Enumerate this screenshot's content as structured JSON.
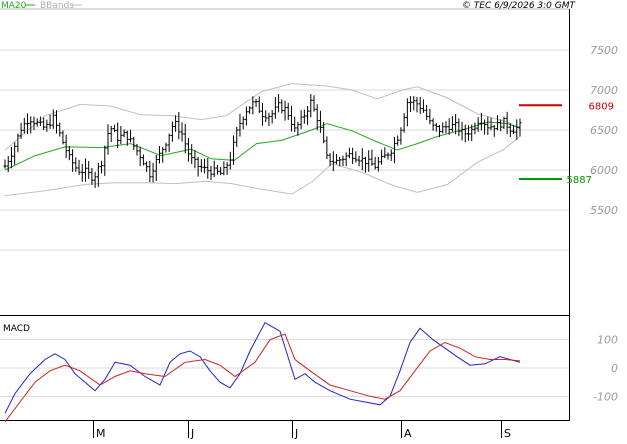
{
  "header": {
    "ma_label": "MA20",
    "bb_label": "BBands",
    "copyright": "© TEC 6/9/2026 3:0 GMT"
  },
  "colors": {
    "ma20": "#22aa22",
    "bbands": "#c0c0c0",
    "price_bars": "#000000",
    "grid": "#d8d8d8",
    "axis_text": "#9a9a9a",
    "resistance": "#cc0000",
    "support": "#009900",
    "macd_line": "#2222cc",
    "signal_line": "#cc2222"
  },
  "chart_data": [
    {
      "type": "ohlc",
      "title": "",
      "indicators": [
        "MA20",
        "BBands"
      ],
      "ylim": [
        4200,
        8000
      ],
      "y_ticks": [
        "5500",
        "6000",
        "6500",
        "7000",
        "7500"
      ],
      "x_tick_labels": [
        "M",
        "J",
        "J",
        "A",
        "S"
      ],
      "levels": [
        {
          "name": "resistance",
          "label": "6809",
          "value": 6809
        },
        {
          "name": "support",
          "label": "5887",
          "value": 5887
        }
      ],
      "price_path": [
        [
          0,
          6050
        ],
        [
          8,
          6250
        ],
        [
          16,
          6520
        ],
        [
          24,
          6650
        ],
        [
          32,
          6580
        ],
        [
          40,
          6520
        ],
        [
          48,
          6650
        ],
        [
          56,
          6400
        ],
        [
          64,
          6150
        ],
        [
          72,
          6000
        ],
        [
          80,
          5980
        ],
        [
          88,
          5900
        ],
        [
          96,
          6100
        ],
        [
          104,
          6550
        ],
        [
          112,
          6400
        ],
        [
          120,
          6450
        ],
        [
          128,
          6300
        ],
        [
          136,
          6150
        ],
        [
          144,
          5950
        ],
        [
          152,
          6150
        ],
        [
          160,
          6350
        ],
        [
          168,
          6600
        ],
        [
          176,
          6450
        ],
        [
          184,
          6150
        ],
        [
          192,
          6050
        ],
        [
          200,
          6000
        ],
        [
          208,
          5980
        ],
        [
          216,
          5950
        ],
        [
          224,
          6150
        ],
        [
          232,
          6550
        ],
        [
          240,
          6750
        ],
        [
          248,
          6850
        ],
        [
          256,
          6700
        ],
        [
          264,
          6680
        ],
        [
          272,
          6800
        ],
        [
          280,
          6750
        ],
        [
          288,
          6500
        ],
        [
          296,
          6650
        ],
        [
          304,
          6850
        ],
        [
          312,
          6600
        ],
        [
          320,
          6150
        ],
        [
          328,
          6100
        ],
        [
          336,
          6150
        ],
        [
          344,
          6200
        ],
        [
          352,
          6150
        ],
        [
          360,
          6100
        ],
        [
          368,
          6050
        ],
        [
          376,
          6150
        ],
        [
          384,
          6250
        ],
        [
          392,
          6450
        ],
        [
          400,
          6850
        ],
        [
          408,
          6850
        ],
        [
          416,
          6750
        ],
        [
          424,
          6550
        ],
        [
          432,
          6500
        ],
        [
          440,
          6550
        ],
        [
          448,
          6550
        ],
        [
          456,
          6450
        ],
        [
          464,
          6500
        ],
        [
          472,
          6650
        ],
        [
          480,
          6550
        ],
        [
          488,
          6550
        ],
        [
          496,
          6600
        ],
        [
          504,
          6500
        ],
        [
          512,
          6550
        ]
      ],
      "ma20_path": [
        [
          0,
          6000
        ],
        [
          30,
          6180
        ],
        [
          60,
          6290
        ],
        [
          95,
          6280
        ],
        [
          125,
          6330
        ],
        [
          155,
          6180
        ],
        [
          185,
          6260
        ],
        [
          205,
          6140
        ],
        [
          228,
          6120
        ],
        [
          250,
          6330
        ],
        [
          275,
          6370
        ],
        [
          305,
          6500
        ],
        [
          320,
          6580
        ],
        [
          345,
          6490
        ],
        [
          370,
          6350
        ],
        [
          390,
          6250
        ],
        [
          410,
          6330
        ],
        [
          430,
          6420
        ],
        [
          460,
          6520
        ],
        [
          480,
          6600
        ],
        [
          500,
          6580
        ],
        [
          512,
          6520
        ]
      ],
      "bb_upper_path": [
        [
          0,
          6250
        ],
        [
          40,
          6680
        ],
        [
          75,
          6820
        ],
        [
          105,
          6800
        ],
        [
          135,
          6690
        ],
        [
          165,
          6680
        ],
        [
          195,
          6630
        ],
        [
          220,
          6680
        ],
        [
          255,
          6980
        ],
        [
          285,
          7080
        ],
        [
          320,
          7050
        ],
        [
          345,
          7000
        ],
        [
          370,
          6890
        ],
        [
          395,
          7000
        ],
        [
          410,
          7040
        ],
        [
          440,
          6900
        ],
        [
          470,
          6700
        ],
        [
          500,
          6600
        ],
        [
          512,
          6520
        ]
      ],
      "bb_lower_path": [
        [
          0,
          5680
        ],
        [
          40,
          5740
        ],
        [
          80,
          5820
        ],
        [
          110,
          5840
        ],
        [
          140,
          5840
        ],
        [
          170,
          5830
        ],
        [
          200,
          5860
        ],
        [
          225,
          5830
        ],
        [
          255,
          5760
        ],
        [
          285,
          5700
        ],
        [
          305,
          5850
        ],
        [
          325,
          6080
        ],
        [
          355,
          5970
        ],
        [
          385,
          5810
        ],
        [
          410,
          5720
        ],
        [
          440,
          5820
        ],
        [
          470,
          6100
        ],
        [
          495,
          6250
        ],
        [
          512,
          6420
        ]
      ]
    },
    {
      "type": "line",
      "title": "MACD",
      "ylim": [
        -180,
        180
      ],
      "y_ticks": [
        "100",
        "0",
        "-100"
      ],
      "series": [
        {
          "values": [
            [
              0,
              -160
            ],
            [
              10,
              -90
            ],
            [
              25,
              -20
            ],
            [
              40,
              30
            ],
            [
              50,
              50
            ],
            [
              60,
              30
            ],
            [
              70,
              -20
            ],
            [
              80,
              -50
            ],
            [
              90,
              -80
            ],
            [
              100,
              -40
            ],
            [
              110,
              20
            ],
            [
              125,
              10
            ],
            [
              140,
              -30
            ],
            [
              155,
              -60
            ],
            [
              165,
              20
            ],
            [
              175,
              50
            ],
            [
              185,
              60
            ],
            [
              195,
              40
            ],
            [
              205,
              -10
            ],
            [
              215,
              -50
            ],
            [
              225,
              -70
            ],
            [
              235,
              -20
            ],
            [
              245,
              60
            ],
            [
              260,
              160
            ],
            [
              275,
              130
            ],
            [
              290,
              -40
            ],
            [
              300,
              -20
            ],
            [
              310,
              -50
            ],
            [
              325,
              -80
            ],
            [
              345,
              -110
            ],
            [
              360,
              -120
            ],
            [
              375,
              -130
            ],
            [
              385,
              -100
            ],
            [
              395,
              -10
            ],
            [
              405,
              90
            ],
            [
              415,
              140
            ],
            [
              428,
              100
            ],
            [
              440,
              70
            ],
            [
              452,
              40
            ],
            [
              465,
              10
            ],
            [
              480,
              15
            ],
            [
              495,
              40
            ],
            [
              505,
              30
            ],
            [
              515,
              20
            ]
          ]
        },
        {
          "values": [
            [
              0,
              -190
            ],
            [
              15,
              -120
            ],
            [
              30,
              -50
            ],
            [
              45,
              -10
            ],
            [
              60,
              10
            ],
            [
              75,
              -10
            ],
            [
              95,
              -60
            ],
            [
              110,
              -30
            ],
            [
              125,
              -10
            ],
            [
              140,
              -20
            ],
            [
              160,
              -30
            ],
            [
              180,
              20
            ],
            [
              200,
              30
            ],
            [
              215,
              10
            ],
            [
              230,
              -30
            ],
            [
              250,
              20
            ],
            [
              265,
              100
            ],
            [
              280,
              120
            ],
            [
              290,
              30
            ],
            [
              305,
              -10
            ],
            [
              325,
              -60
            ],
            [
              345,
              -80
            ],
            [
              365,
              -100
            ],
            [
              380,
              -110
            ],
            [
              395,
              -80
            ],
            [
              410,
              -10
            ],
            [
              425,
              60
            ],
            [
              440,
              90
            ],
            [
              455,
              70
            ],
            [
              470,
              40
            ],
            [
              485,
              30
            ],
            [
              500,
              30
            ],
            [
              515,
              25
            ]
          ]
        }
      ]
    }
  ]
}
